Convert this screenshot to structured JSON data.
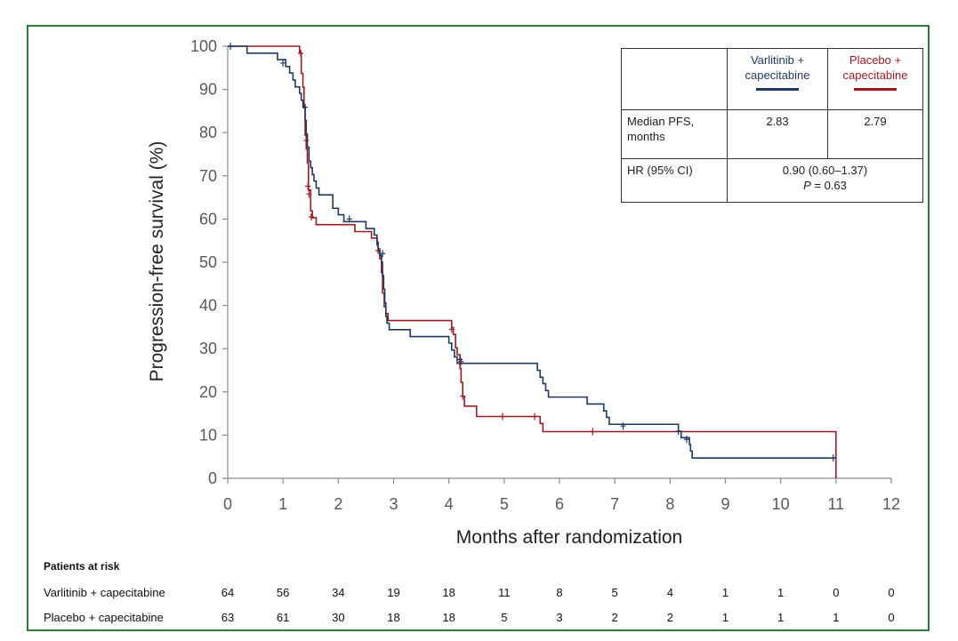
{
  "chart_data": {
    "type": "line",
    "title": "",
    "xlabel": "Months after randomization",
    "ylabel": "Progression-free survival (%)",
    "xlim": [
      0,
      12
    ],
    "ylim": [
      0,
      100
    ],
    "x_ticks": [
      "0",
      "1",
      "2",
      "3",
      "4",
      "5",
      "6",
      "7",
      "8",
      "9",
      "10",
      "11",
      "12"
    ],
    "y_ticks": [
      "0",
      "10",
      "20",
      "30",
      "40",
      "50",
      "60",
      "70",
      "80",
      "90",
      "100"
    ],
    "grid": false,
    "series": [
      {
        "name": "Varlitinib + capecitabine",
        "color": "#1f3a5f",
        "steps": [
          [
            0,
            100
          ],
          [
            0.35,
            98.4
          ],
          [
            0.9,
            96.9
          ],
          [
            1.05,
            95.3
          ],
          [
            1.12,
            93.8
          ],
          [
            1.18,
            92.2
          ],
          [
            1.22,
            90.6
          ],
          [
            1.3,
            89.1
          ],
          [
            1.33,
            87.5
          ],
          [
            1.36,
            85.9
          ],
          [
            1.4,
            82.8
          ],
          [
            1.42,
            79.7
          ],
          [
            1.44,
            76.6
          ],
          [
            1.47,
            73.4
          ],
          [
            1.5,
            71.9
          ],
          [
            1.53,
            70.3
          ],
          [
            1.56,
            68.8
          ],
          [
            1.6,
            67.2
          ],
          [
            1.65,
            65.6
          ],
          [
            1.9,
            62.5
          ],
          [
            2.0,
            61.0
          ],
          [
            2.1,
            59.4
          ],
          [
            2.5,
            57.8
          ],
          [
            2.65,
            56.3
          ],
          [
            2.7,
            54.7
          ],
          [
            2.72,
            53.1
          ],
          [
            2.75,
            51.6
          ],
          [
            2.78,
            50.0
          ],
          [
            2.8,
            46.9
          ],
          [
            2.82,
            43.8
          ],
          [
            2.84,
            40.6
          ],
          [
            2.86,
            37.5
          ],
          [
            2.88,
            35.9
          ],
          [
            2.92,
            34.4
          ],
          [
            3.3,
            32.8
          ],
          [
            4.0,
            31.3
          ],
          [
            4.05,
            29.7
          ],
          [
            4.1,
            28.1
          ],
          [
            4.15,
            26.6
          ],
          [
            5.6,
            25.0
          ],
          [
            5.65,
            23.4
          ],
          [
            5.7,
            21.9
          ],
          [
            5.75,
            20.3
          ],
          [
            5.8,
            18.8
          ],
          [
            6.5,
            17.2
          ],
          [
            6.8,
            15.6
          ],
          [
            6.85,
            14.1
          ],
          [
            6.9,
            12.5
          ],
          [
            8.15,
            10.9
          ],
          [
            8.2,
            9.4
          ],
          [
            8.35,
            7.8
          ],
          [
            8.37,
            6.3
          ],
          [
            8.4,
            4.7
          ],
          [
            11.0,
            4.7
          ]
        ],
        "censors": [
          [
            0.05,
            100
          ],
          [
            1.0,
            96.1
          ],
          [
            1.4,
            85.9
          ],
          [
            2.2,
            60.0
          ],
          [
            2.8,
            52.0
          ],
          [
            4.2,
            27.5
          ],
          [
            7.15,
            12.1
          ],
          [
            8.15,
            10.9
          ],
          [
            8.3,
            9.0
          ],
          [
            10.95,
            4.7
          ]
        ]
      },
      {
        "name": "Placebo + capecitabine",
        "color": "#9e1b24",
        "steps": [
          [
            0,
            100
          ],
          [
            1.3,
            98.4
          ],
          [
            1.33,
            93.7
          ],
          [
            1.36,
            90.5
          ],
          [
            1.38,
            85.7
          ],
          [
            1.4,
            79.4
          ],
          [
            1.42,
            76.2
          ],
          [
            1.44,
            73.0
          ],
          [
            1.46,
            66.7
          ],
          [
            1.5,
            61.9
          ],
          [
            1.53,
            60.3
          ],
          [
            1.6,
            58.7
          ],
          [
            2.3,
            57.1
          ],
          [
            2.6,
            55.6
          ],
          [
            2.7,
            54.0
          ],
          [
            2.72,
            52.4
          ],
          [
            2.75,
            50.8
          ],
          [
            2.78,
            47.6
          ],
          [
            2.8,
            42.9
          ],
          [
            2.83,
            39.7
          ],
          [
            2.86,
            38.1
          ],
          [
            2.9,
            36.5
          ],
          [
            4.05,
            34.9
          ],
          [
            4.08,
            33.3
          ],
          [
            4.12,
            30.2
          ],
          [
            4.15,
            28.6
          ],
          [
            4.2,
            25.4
          ],
          [
            4.22,
            22.2
          ],
          [
            4.25,
            19.0
          ],
          [
            4.28,
            16.7
          ],
          [
            4.5,
            14.3
          ],
          [
            5.65,
            12.7
          ],
          [
            5.7,
            10.8
          ],
          [
            8.1,
            10.8
          ],
          [
            11.0,
            10.8
          ],
          [
            11.0,
            0
          ]
        ],
        "censors": [
          [
            1.32,
            98.4
          ],
          [
            1.42,
            78.2
          ],
          [
            1.45,
            67.6
          ],
          [
            1.47,
            65.8
          ],
          [
            1.51,
            60.5
          ],
          [
            2.72,
            52.7
          ],
          [
            4.05,
            34.5
          ],
          [
            4.22,
            27.0
          ],
          [
            4.25,
            19.0
          ],
          [
            4.97,
            14.3
          ],
          [
            5.55,
            14.3
          ],
          [
            6.6,
            10.8
          ]
        ]
      }
    ]
  },
  "legend_table": {
    "header_blue_line1": "Varlitinib +",
    "header_blue_line2": "capecitabine",
    "header_red_line1": "Placebo +",
    "header_red_line2": "capecitabine",
    "row_median_label_line1": "Median PFS,",
    "row_median_label_line2": "months",
    "median_blue": "2.83",
    "median_red": "2.79",
    "row_hr_label": "HR (95% CI)",
    "hr_value": "0.90 (0.60–1.37)",
    "p_prefix": "P",
    "p_value": " = 0.63"
  },
  "risk_table": {
    "heading": "Patients at risk",
    "rows": [
      {
        "label": "Varlitinib + capecitabine",
        "counts": [
          "64",
          "56",
          "34",
          "19",
          "18",
          "11",
          "8",
          "5",
          "4",
          "1",
          "1",
          "0",
          "0"
        ]
      },
      {
        "label": "Placebo + capecitabine",
        "counts": [
          "63",
          "61",
          "30",
          "18",
          "18",
          "5",
          "3",
          "2",
          "2",
          "1",
          "1",
          "1",
          "0"
        ]
      }
    ]
  }
}
